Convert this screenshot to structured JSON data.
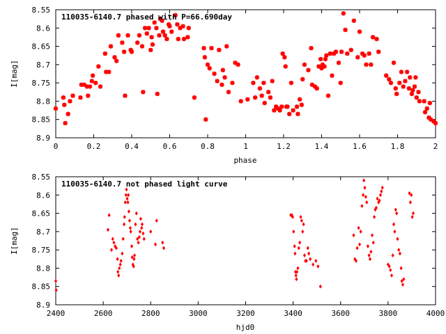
{
  "chart_data": [
    {
      "type": "scatter",
      "title": "110035-6140.7 phased with P=66.690day",
      "xlabel": "phase",
      "ylabel": "I[mag]",
      "xlim": [
        0,
        2
      ],
      "ylim": [
        8.9,
        8.55
      ],
      "y_inverted": true,
      "grid": false,
      "color": "#ff0000",
      "marker": "star",
      "xticks": [
        "0",
        "0.2",
        "0.4",
        "0.6",
        "0.8",
        "1",
        "1.2",
        "1.4",
        "1.6",
        "1.8",
        "2"
      ],
      "yticks": [
        "8.55",
        "8.6",
        "8.65",
        "8.7",
        "8.75",
        "8.8",
        "8.85",
        "8.9"
      ],
      "points": [
        [
          0.0,
          8.82
        ],
        [
          0.04,
          8.79
        ],
        [
          0.045,
          8.81
        ],
        [
          0.05,
          8.86
        ],
        [
          0.065,
          8.835
        ],
        [
          0.075,
          8.8
        ],
        [
          0.09,
          8.785
        ],
        [
          0.13,
          8.79
        ],
        [
          0.135,
          8.755
        ],
        [
          0.15,
          8.755
        ],
        [
          0.165,
          8.76
        ],
        [
          0.17,
          8.785
        ],
        [
          0.18,
          8.76
        ],
        [
          0.19,
          8.745
        ],
        [
          0.195,
          8.73
        ],
        [
          0.21,
          8.75
        ],
        [
          0.225,
          8.705
        ],
        [
          0.235,
          8.76
        ],
        [
          0.26,
          8.67
        ],
        [
          0.265,
          8.72
        ],
        [
          0.28,
          8.72
        ],
        [
          0.29,
          8.65
        ],
        [
          0.31,
          8.68
        ],
        [
          0.32,
          8.69
        ],
        [
          0.33,
          8.62
        ],
        [
          0.35,
          8.64
        ],
        [
          0.36,
          8.665
        ],
        [
          0.365,
          8.785
        ],
        [
          0.38,
          8.62
        ],
        [
          0.395,
          8.66
        ],
        [
          0.4,
          8.665
        ],
        [
          0.43,
          8.64
        ],
        [
          0.44,
          8.62
        ],
        [
          0.455,
          8.65
        ],
        [
          0.46,
          8.775
        ],
        [
          0.47,
          8.6
        ],
        [
          0.48,
          8.615
        ],
        [
          0.49,
          8.6
        ],
        [
          0.5,
          8.66
        ],
        [
          0.505,
          8.625
        ],
        [
          0.51,
          8.645
        ],
        [
          0.52,
          8.585
        ],
        [
          0.53,
          8.6
        ],
        [
          0.535,
          8.78
        ],
        [
          0.545,
          8.62
        ],
        [
          0.55,
          8.575
        ],
        [
          0.56,
          8.58
        ],
        [
          0.565,
          8.61
        ],
        [
          0.575,
          8.62
        ],
        [
          0.585,
          8.63
        ],
        [
          0.595,
          8.59
        ],
        [
          0.6,
          8.595
        ],
        [
          0.61,
          8.61
        ],
        [
          0.63,
          8.565
        ],
        [
          0.64,
          8.59
        ],
        [
          0.645,
          8.63
        ],
        [
          0.655,
          8.6
        ],
        [
          0.67,
          8.595
        ],
        [
          0.675,
          8.63
        ],
        [
          0.695,
          8.625
        ],
        [
          0.7,
          8.6
        ],
        [
          0.73,
          8.79
        ],
        [
          0.78,
          8.655
        ],
        [
          0.785,
          8.68
        ],
        [
          0.79,
          8.85
        ],
        [
          0.8,
          8.7
        ],
        [
          0.81,
          8.71
        ],
        [
          0.82,
          8.655
        ],
        [
          0.835,
          8.725
        ],
        [
          0.85,
          8.745
        ],
        [
          0.86,
          8.66
        ],
        [
          0.875,
          8.755
        ],
        [
          0.88,
          8.715
        ],
        [
          0.89,
          8.735
        ],
        [
          0.9,
          8.65
        ],
        [
          0.91,
          8.775
        ],
        [
          0.93,
          8.75
        ],
        [
          0.945,
          8.695
        ],
        [
          0.96,
          8.7
        ],
        [
          0.975,
          8.8
        ],
        [
          1.01,
          8.795
        ],
        [
          1.04,
          8.75
        ],
        [
          1.05,
          8.79
        ],
        [
          1.06,
          8.735
        ],
        [
          1.075,
          8.765
        ],
        [
          1.085,
          8.785
        ],
        [
          1.095,
          8.75
        ],
        [
          1.1,
          8.805
        ],
        [
          1.12,
          8.775
        ],
        [
          1.13,
          8.79
        ],
        [
          1.14,
          8.745
        ],
        [
          1.15,
          8.825
        ],
        [
          1.16,
          8.815
        ],
        [
          1.17,
          8.82
        ],
        [
          1.18,
          8.825
        ],
        [
          1.19,
          8.815
        ],
        [
          1.195,
          8.67
        ],
        [
          1.205,
          8.68
        ],
        [
          1.21,
          8.705
        ],
        [
          1.215,
          8.815
        ],
        [
          1.22,
          8.815
        ],
        [
          1.23,
          8.835
        ],
        [
          1.24,
          8.75
        ],
        [
          1.25,
          8.825
        ],
        [
          1.27,
          8.815
        ],
        [
          1.275,
          8.835
        ],
        [
          1.285,
          8.795
        ],
        [
          1.295,
          8.81
        ],
        [
          1.3,
          8.74
        ],
        [
          1.31,
          8.7
        ],
        [
          1.33,
          8.715
        ],
        [
          1.345,
          8.655
        ],
        [
          1.35,
          8.755
        ],
        [
          1.365,
          8.76
        ],
        [
          1.375,
          8.765
        ],
        [
          1.385,
          8.705
        ],
        [
          1.395,
          8.685
        ],
        [
          1.4,
          8.71
        ],
        [
          1.405,
          8.7
        ],
        [
          1.415,
          8.705
        ],
        [
          1.42,
          8.685
        ],
        [
          1.425,
          8.675
        ],
        [
          1.435,
          8.785
        ],
        [
          1.445,
          8.67
        ],
        [
          1.455,
          8.73
        ],
        [
          1.465,
          8.67
        ],
        [
          1.475,
          8.665
        ],
        [
          1.49,
          8.695
        ],
        [
          1.5,
          8.75
        ],
        [
          1.505,
          8.665
        ],
        [
          1.515,
          8.56
        ],
        [
          1.525,
          8.605
        ],
        [
          1.535,
          8.67
        ],
        [
          1.555,
          8.66
        ],
        [
          1.57,
          8.58
        ],
        [
          1.59,
          8.68
        ],
        [
          1.6,
          8.61
        ],
        [
          1.615,
          8.67
        ],
        [
          1.625,
          8.675
        ],
        [
          1.635,
          8.7
        ],
        [
          1.65,
          8.67
        ],
        [
          1.66,
          8.7
        ],
        [
          1.67,
          8.625
        ],
        [
          1.69,
          8.63
        ],
        [
          1.7,
          8.665
        ],
        [
          1.74,
          8.73
        ],
        [
          1.755,
          8.74
        ],
        [
          1.765,
          8.75
        ],
        [
          1.78,
          8.695
        ],
        [
          1.79,
          8.765
        ],
        [
          1.795,
          8.78
        ],
        [
          1.81,
          8.75
        ],
        [
          1.82,
          8.72
        ],
        [
          1.83,
          8.76
        ],
        [
          1.84,
          8.745
        ],
        [
          1.85,
          8.72
        ],
        [
          1.86,
          8.765
        ],
        [
          1.865,
          8.735
        ],
        [
          1.875,
          8.78
        ],
        [
          1.88,
          8.77
        ],
        [
          1.89,
          8.76
        ],
        [
          1.895,
          8.735
        ],
        [
          1.9,
          8.79
        ],
        [
          1.91,
          8.775
        ],
        [
          1.915,
          8.8
        ],
        [
          1.94,
          8.8
        ],
        [
          1.945,
          8.83
        ],
        [
          1.955,
          8.82
        ],
        [
          1.965,
          8.845
        ],
        [
          1.97,
          8.805
        ],
        [
          1.975,
          8.85
        ],
        [
          1.99,
          8.855
        ],
        [
          2.0,
          8.86
        ]
      ]
    },
    {
      "type": "scatter",
      "title": "110035-6140.7 not phased light curve",
      "xlabel": "hjd0",
      "ylabel": "I[mag]",
      "xlim": [
        2400,
        4000
      ],
      "ylim": [
        8.9,
        8.55
      ],
      "y_inverted": true,
      "grid": false,
      "color": "#ff0000",
      "marker": "diamond",
      "xticks": [
        "2400",
        "2600",
        "2800",
        "3000",
        "3200",
        "3400",
        "3600",
        "3800",
        "4000"
      ],
      "yticks": [
        "8.55",
        "8.6",
        "8.65",
        "8.7",
        "8.75",
        "8.8",
        "8.85",
        "8.9"
      ],
      "points": [
        [
          2400,
          8.835
        ],
        [
          2402,
          8.86
        ],
        [
          2620,
          8.695
        ],
        [
          2625,
          8.655
        ],
        [
          2635,
          8.75
        ],
        [
          2640,
          8.72
        ],
        [
          2645,
          8.73
        ],
        [
          2650,
          8.74
        ],
        [
          2655,
          8.745
        ],
        [
          2660,
          8.775
        ],
        [
          2662,
          8.81
        ],
        [
          2665,
          8.82
        ],
        [
          2668,
          8.8
        ],
        [
          2672,
          8.79
        ],
        [
          2675,
          8.78
        ],
        [
          2680,
          8.76
        ],
        [
          2684,
          8.72
        ],
        [
          2688,
          8.68
        ],
        [
          2690,
          8.66
        ],
        [
          2693,
          8.62
        ],
        [
          2696,
          8.6
        ],
        [
          2698,
          8.585
        ],
        [
          2701,
          8.61
        ],
        [
          2704,
          8.62
        ],
        [
          2706,
          8.6
        ],
        [
          2708,
          8.645
        ],
        [
          2711,
          8.67
        ],
        [
          2714,
          8.69
        ],
        [
          2716,
          8.7
        ],
        [
          2720,
          8.74
        ],
        [
          2722,
          8.77
        ],
        [
          2725,
          8.79
        ],
        [
          2728,
          8.795
        ],
        [
          2730,
          8.775
        ],
        [
          2732,
          8.765
        ],
        [
          2736,
          8.68
        ],
        [
          2740,
          8.65
        ],
        [
          2744,
          8.72
        ],
        [
          2748,
          8.73
        ],
        [
          2752,
          8.715
        ],
        [
          2755,
          8.7
        ],
        [
          2758,
          8.665
        ],
        [
          2762,
          8.69
        ],
        [
          2764,
          8.68
        ],
        [
          2768,
          8.705
        ],
        [
          2772,
          8.72
        ],
        [
          2800,
          8.7
        ],
        [
          2820,
          8.735
        ],
        [
          2825,
          8.67
        ],
        [
          2850,
          8.73
        ],
        [
          2855,
          8.745
        ],
        [
          3390,
          8.655
        ],
        [
          3395,
          8.655
        ],
        [
          3398,
          8.66
        ],
        [
          3402,
          8.7
        ],
        [
          3406,
          8.74
        ],
        [
          3408,
          8.76
        ],
        [
          3410,
          8.81
        ],
        [
          3412,
          8.82
        ],
        [
          3414,
          8.83
        ],
        [
          3416,
          8.81
        ],
        [
          3420,
          8.8
        ],
        [
          3424,
          8.745
        ],
        [
          3428,
          8.73
        ],
        [
          3432,
          8.66
        ],
        [
          3436,
          8.67
        ],
        [
          3440,
          8.7
        ],
        [
          3444,
          8.68
        ],
        [
          3448,
          8.765
        ],
        [
          3452,
          8.78
        ],
        [
          3456,
          8.78
        ],
        [
          3462,
          8.745
        ],
        [
          3466,
          8.76
        ],
        [
          3472,
          8.775
        ],
        [
          3484,
          8.79
        ],
        [
          3496,
          8.78
        ],
        [
          3505,
          8.795
        ],
        [
          3515,
          8.85
        ],
        [
          3655,
          8.71
        ],
        [
          3660,
          8.775
        ],
        [
          3665,
          8.78
        ],
        [
          3670,
          8.745
        ],
        [
          3676,
          8.69
        ],
        [
          3680,
          8.735
        ],
        [
          3685,
          8.7
        ],
        [
          3690,
          8.63
        ],
        [
          3695,
          8.6
        ],
        [
          3698,
          8.56
        ],
        [
          3702,
          8.58
        ],
        [
          3706,
          8.605
        ],
        [
          3710,
          8.62
        ],
        [
          3715,
          8.74
        ],
        [
          3720,
          8.765
        ],
        [
          3724,
          8.775
        ],
        [
          3728,
          8.755
        ],
        [
          3733,
          8.71
        ],
        [
          3738,
          8.73
        ],
        [
          3742,
          8.66
        ],
        [
          3746,
          8.64
        ],
        [
          3750,
          8.635
        ],
        [
          3755,
          8.61
        ],
        [
          3760,
          8.62
        ],
        [
          3764,
          8.615
        ],
        [
          3768,
          8.6
        ],
        [
          3772,
          8.59
        ],
        [
          3776,
          8.58
        ],
        [
          3800,
          8.79
        ],
        [
          3805,
          8.795
        ],
        [
          3810,
          8.805
        ],
        [
          3815,
          8.82
        ],
        [
          3820,
          8.765
        ],
        [
          3824,
          8.68
        ],
        [
          3828,
          8.7
        ],
        [
          3832,
          8.64
        ],
        [
          3836,
          8.65
        ],
        [
          3840,
          8.72
        ],
        [
          3845,
          8.75
        ],
        [
          3850,
          8.76
        ],
        [
          3855,
          8.8
        ],
        [
          3858,
          8.835
        ],
        [
          3862,
          8.845
        ],
        [
          3866,
          8.83
        ],
        [
          3890,
          8.595
        ],
        [
          3894,
          8.62
        ],
        [
          3898,
          8.6
        ],
        [
          3902,
          8.66
        ],
        [
          3906,
          8.65
        ]
      ]
    }
  ]
}
